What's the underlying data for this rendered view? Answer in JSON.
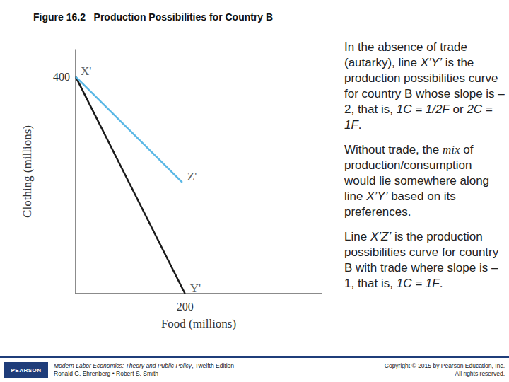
{
  "chart_data": {
    "type": "line",
    "title": "Figure 16.2   Production Possibilities for Country B",
    "x_label": "Food (millions)",
    "y_label": "Clothing (millions)",
    "series": [
      {
        "color": "#1a1a1a",
        "x": [
          0,
          200
        ],
        "values": [
          400,
          0
        ]
      },
      {
        "color": "#5bb8e6",
        "x": [
          0,
          195
        ],
        "values": [
          400,
          205
        ]
      }
    ],
    "annotations": [
      {
        "text": "X'",
        "x": 0,
        "y": 400
      },
      {
        "text": "Y'",
        "x": 200,
        "y": 0
      },
      {
        "text": "Z'",
        "x": 195,
        "y": 205
      }
    ],
    "xlim": [
      0,
      450
    ],
    "ylim": [
      0,
      450
    ],
    "xticks": [
      200
    ],
    "yticks": [
      400
    ],
    "grid": false
  },
  "text_panel": {
    "paragraphs": [
      [
        {
          "text": "In the absence of trade (autarky), line "
        },
        {
          "text": "X’Y’",
          "italic": true
        },
        {
          "text": " is the production possibilities curve for country B whose slope is –2, that is, "
        },
        {
          "text": "1C = 1/2F",
          "italic": true
        },
        {
          "text": " or "
        },
        {
          "text": "2C = 1F",
          "italic": true
        },
        {
          "text": "."
        }
      ],
      [
        {
          "text": "Without trade, the "
        },
        {
          "text": "mix",
          "italic": true,
          "serif": true
        },
        {
          "text": " of production/consumption would lie somewhere along line "
        },
        {
          "text": "X’Y’",
          "italic": true
        },
        {
          "text": " based on its preferences."
        }
      ],
      [
        {
          "text": "Line "
        },
        {
          "text": "X’Z’",
          "italic": true
        },
        {
          "text": " is the production possibilities curve for country B with trade where slope is –1, that is, "
        },
        {
          "text": "1C = 1F",
          "italic": true
        },
        {
          "text": "."
        }
      ]
    ]
  },
  "footer": {
    "logo": "PEARSON",
    "book_title": "Modern Labor Economics: Theory and Public Policy",
    "book_edition": ", Twelfth Edition",
    "authors": "Ronald G. Ehrenberg • Robert S. Smith",
    "copyright": "Copyright © 2015 by Pearson Education, Inc.",
    "rights": "All rights reserved."
  }
}
